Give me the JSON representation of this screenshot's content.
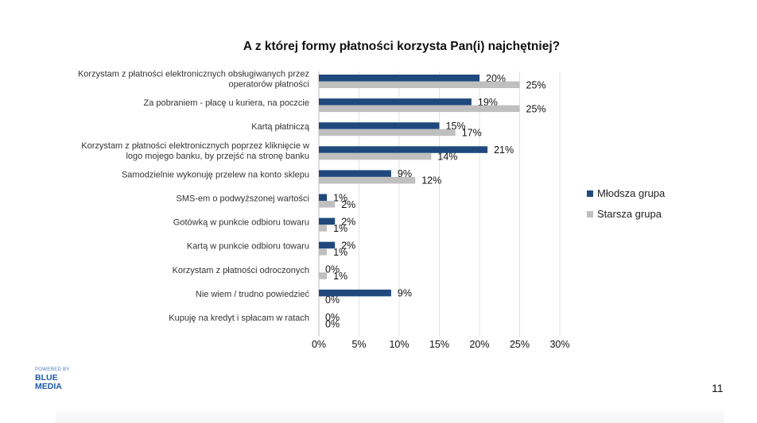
{
  "brand": {
    "powered_by": "POWERED BY",
    "name": "BLUE MEDIA"
  },
  "page_number": "11",
  "colors": {
    "mlodsza": "#1f497d",
    "starsza": "#bfbfbf"
  },
  "chart_data": {
    "type": "bar",
    "orientation": "horizontal",
    "title": "A z której formy płatności korzysta Pan(i) najchętniej?",
    "categories": [
      [
        "Korzystam z płatności elektronicznych obsługiwanych przez",
        "operatorów płatności"
      ],
      [
        "Za pobraniem - płacę u kuriera, na poczcie"
      ],
      [
        "Kartą płatniczą"
      ],
      [
        "Korzystam z płatności elektronicznych poprzez kliknięcie w",
        "logo mojego banku, by przejść na stronę banku"
      ],
      [
        "Samodzielnie wykonuję przelew na konto sklepu"
      ],
      [
        "SMS-em o podwyższonej wartości"
      ],
      [
        "Gotówką w punkcie odbioru towaru"
      ],
      [
        "Kartą w punkcie odbioru towaru"
      ],
      [
        "Korzystam z płatności odroczonych"
      ],
      [
        "Nie wiem / trudno powiedzieć"
      ],
      [
        "Kupuję na kredyt i spłacam w ratach"
      ]
    ],
    "series": [
      {
        "name": "Młodsza grupa",
        "values": [
          20,
          19,
          15,
          21,
          9,
          1,
          2,
          2,
          0,
          9,
          0
        ]
      },
      {
        "name": "Starsza grupa",
        "values": [
          25,
          25,
          17,
          14,
          12,
          2,
          1,
          1,
          1,
          0,
          0
        ]
      }
    ],
    "value_suffix": "%",
    "xlim": [
      0,
      30
    ],
    "xticks": [
      "0%",
      "5%",
      "10%",
      "15%",
      "20%",
      "25%",
      "30%"
    ],
    "grid": true,
    "legend_position": "right"
  }
}
